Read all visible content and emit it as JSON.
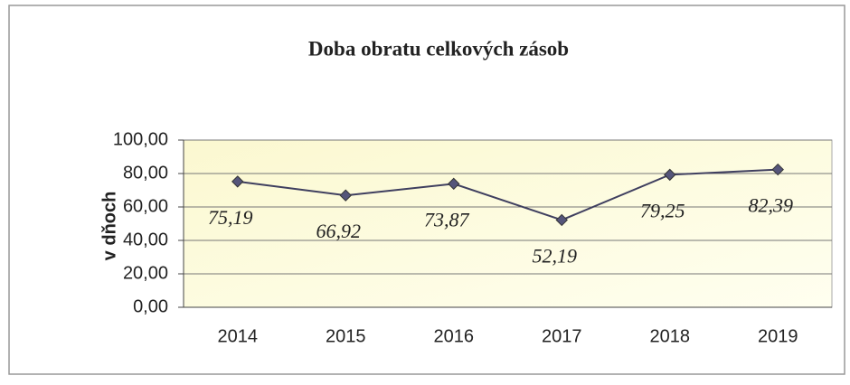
{
  "chart_data": {
    "type": "line",
    "title": "Doba obratu celkových zásob",
    "y_label": "v dňoch",
    "categories": [
      "2014",
      "2015",
      "2016",
      "2017",
      "2018",
      "2019"
    ],
    "series": [
      {
        "name": "Doba obratu celkových zásob",
        "color": "#3f3f5f",
        "values": [
          75.19,
          66.92,
          73.87,
          52.19,
          79.25,
          82.39
        ],
        "value_labels": [
          "75,19",
          "66,92",
          "73,87",
          "52,19",
          "79,25",
          "82,39"
        ]
      }
    ],
    "ylim": [
      0,
      100
    ],
    "yticks": [
      {
        "value": 0,
        "label": "0,00"
      },
      {
        "value": 20,
        "label": "20,00"
      },
      {
        "value": 40,
        "label": "40,00"
      },
      {
        "value": 60,
        "label": "60,00"
      },
      {
        "value": 80,
        "label": "80,00"
      },
      {
        "value": 100,
        "label": "100,00"
      }
    ],
    "grid": true
  }
}
